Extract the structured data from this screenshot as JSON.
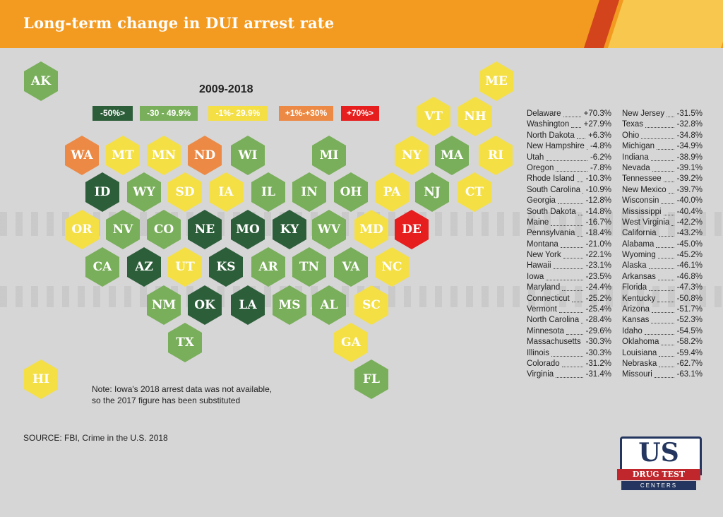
{
  "title": "Long-term change in DUI arrest rate",
  "period": "2009-2018",
  "legend": [
    {
      "label": "-50%>",
      "color": "#2d5e3a"
    },
    {
      "label": "-30 - 49.9%",
      "color": "#79ae5a"
    },
    {
      "label": "-1%- 29.9%",
      "color": "#f4df45"
    },
    {
      "label": "+1%-+30%",
      "color": "#ec8a45"
    },
    {
      "label": "+70%>",
      "color": "#e61e1e"
    }
  ],
  "states": [
    {
      "abbr": "AK",
      "cat": 1
    },
    {
      "abbr": "HI",
      "cat": 2
    },
    {
      "abbr": "ME",
      "cat": 2
    },
    {
      "abbr": "VT",
      "cat": 2
    },
    {
      "abbr": "NH",
      "cat": 2
    },
    {
      "abbr": "WA",
      "cat": 3
    },
    {
      "abbr": "MT",
      "cat": 2
    },
    {
      "abbr": "MN",
      "cat": 2
    },
    {
      "abbr": "ND",
      "cat": 3
    },
    {
      "abbr": "WI",
      "cat": 1
    },
    {
      "abbr": "MI",
      "cat": 1
    },
    {
      "abbr": "NY",
      "cat": 2
    },
    {
      "abbr": "MA",
      "cat": 1
    },
    {
      "abbr": "RI",
      "cat": 2
    },
    {
      "abbr": "ID",
      "cat": 0
    },
    {
      "abbr": "WY",
      "cat": 1
    },
    {
      "abbr": "SD",
      "cat": 2
    },
    {
      "abbr": "IA",
      "cat": 2
    },
    {
      "abbr": "IL",
      "cat": 1
    },
    {
      "abbr": "IN",
      "cat": 1
    },
    {
      "abbr": "OH",
      "cat": 1
    },
    {
      "abbr": "PA",
      "cat": 2
    },
    {
      "abbr": "NJ",
      "cat": 1
    },
    {
      "abbr": "CT",
      "cat": 2
    },
    {
      "abbr": "OR",
      "cat": 2
    },
    {
      "abbr": "NV",
      "cat": 1
    },
    {
      "abbr": "CO",
      "cat": 1
    },
    {
      "abbr": "NE",
      "cat": 0
    },
    {
      "abbr": "MO",
      "cat": 0
    },
    {
      "abbr": "KY",
      "cat": 0
    },
    {
      "abbr": "WV",
      "cat": 1
    },
    {
      "abbr": "MD",
      "cat": 2
    },
    {
      "abbr": "DE",
      "cat": 4
    },
    {
      "abbr": "CA",
      "cat": 1
    },
    {
      "abbr": "AZ",
      "cat": 0
    },
    {
      "abbr": "UT",
      "cat": 2
    },
    {
      "abbr": "KS",
      "cat": 0
    },
    {
      "abbr": "AR",
      "cat": 1
    },
    {
      "abbr": "TN",
      "cat": 1
    },
    {
      "abbr": "VA",
      "cat": 1
    },
    {
      "abbr": "NC",
      "cat": 2
    },
    {
      "abbr": "NM",
      "cat": 1
    },
    {
      "abbr": "OK",
      "cat": 0
    },
    {
      "abbr": "LA",
      "cat": 0
    },
    {
      "abbr": "MS",
      "cat": 1
    },
    {
      "abbr": "AL",
      "cat": 1
    },
    {
      "abbr": "SC",
      "cat": 2
    },
    {
      "abbr": "TX",
      "cat": 1
    },
    {
      "abbr": "GA",
      "cat": 2
    },
    {
      "abbr": "FL",
      "cat": 1
    }
  ],
  "table": {
    "left": [
      {
        "name": "Delaware",
        "value": "+70.3%"
      },
      {
        "name": "Washington",
        "value": "+27.9%"
      },
      {
        "name": "North Dakota",
        "value": "+6.3%"
      },
      {
        "name": "New Hampshire",
        "value": "-4.8%"
      },
      {
        "name": "Utah",
        "value": "-6.2%"
      },
      {
        "name": "Oregon",
        "value": "-7.8%"
      },
      {
        "name": "Rhode Island",
        "value": "-10.3%"
      },
      {
        "name": "South Carolina",
        "value": "-10.9%"
      },
      {
        "name": "Georgia",
        "value": "-12.8%"
      },
      {
        "name": "South Dakota",
        "value": "-14.8%"
      },
      {
        "name": "Maine",
        "value": "-16.7%"
      },
      {
        "name": "Pennsylvania",
        "value": "-18.4%"
      },
      {
        "name": "Montana",
        "value": "-21.0%"
      },
      {
        "name": "New York",
        "value": "-22.1%"
      },
      {
        "name": "Hawaii",
        "value": "-23.1%"
      },
      {
        "name": "Iowa",
        "value": "-23.5%"
      },
      {
        "name": "Maryland",
        "value": "-24.4%"
      },
      {
        "name": "Connecticut",
        "value": "-25.2%"
      },
      {
        "name": "Vermont",
        "value": "-25.4%"
      },
      {
        "name": "North Carolina",
        "value": "-28.4%"
      },
      {
        "name": "Minnesota",
        "value": "-29.6%"
      },
      {
        "name": "Massachusetts",
        "value": "-30.3%"
      },
      {
        "name": "Illinois",
        "value": "-30.3%"
      },
      {
        "name": "Colorado",
        "value": "-31.2%"
      },
      {
        "name": "Virginia",
        "value": "-31.4%"
      }
    ],
    "right": [
      {
        "name": "New Jersey",
        "value": "-31.5%"
      },
      {
        "name": "Texas",
        "value": "-32.8%"
      },
      {
        "name": "Ohio",
        "value": "-34.8%"
      },
      {
        "name": "Michigan",
        "value": "-34.9%"
      },
      {
        "name": "Indiana",
        "value": "-38.9%"
      },
      {
        "name": "Nevada",
        "value": "-39.1%"
      },
      {
        "name": "Tennessee",
        "value": "-39.2%"
      },
      {
        "name": "New Mexico",
        "value": "-39.7%"
      },
      {
        "name": "Wisconsin",
        "value": "-40.0%"
      },
      {
        "name": "Mississippi",
        "value": "-40.4%"
      },
      {
        "name": "West Virginia",
        "value": "-42.2%"
      },
      {
        "name": "California",
        "value": "-43.2%"
      },
      {
        "name": "Alabama",
        "value": "-45.0%"
      },
      {
        "name": "Wyoming",
        "value": "-45.2%"
      },
      {
        "name": "Alaska",
        "value": "-46.1%"
      },
      {
        "name": "Arkansas",
        "value": "-46.8%"
      },
      {
        "name": "Florida",
        "value": "-47.3%"
      },
      {
        "name": "Kentucky",
        "value": "-50.8%"
      },
      {
        "name": "Arizona",
        "value": "-51.7%"
      },
      {
        "name": "Kansas",
        "value": "-52.3%"
      },
      {
        "name": "Idaho",
        "value": "-54.5%"
      },
      {
        "name": "Oklahoma",
        "value": "-58.2%"
      },
      {
        "name": "Louisiana",
        "value": "-59.4%"
      },
      {
        "name": "Nebraska",
        "value": "-62.7%"
      },
      {
        "name": "Missouri",
        "value": "-63.1%"
      }
    ]
  },
  "note": {
    "line1": "Note: Iowa's 2018 arrest data was not available,",
    "line2": "so the 2017 figure has been substituted"
  },
  "source": "SOURCE: FBI, Crime in the U.S. 2018",
  "logo": {
    "main": "US",
    "sub": "DRUG TEST",
    "bottom": "CENTERS"
  }
}
